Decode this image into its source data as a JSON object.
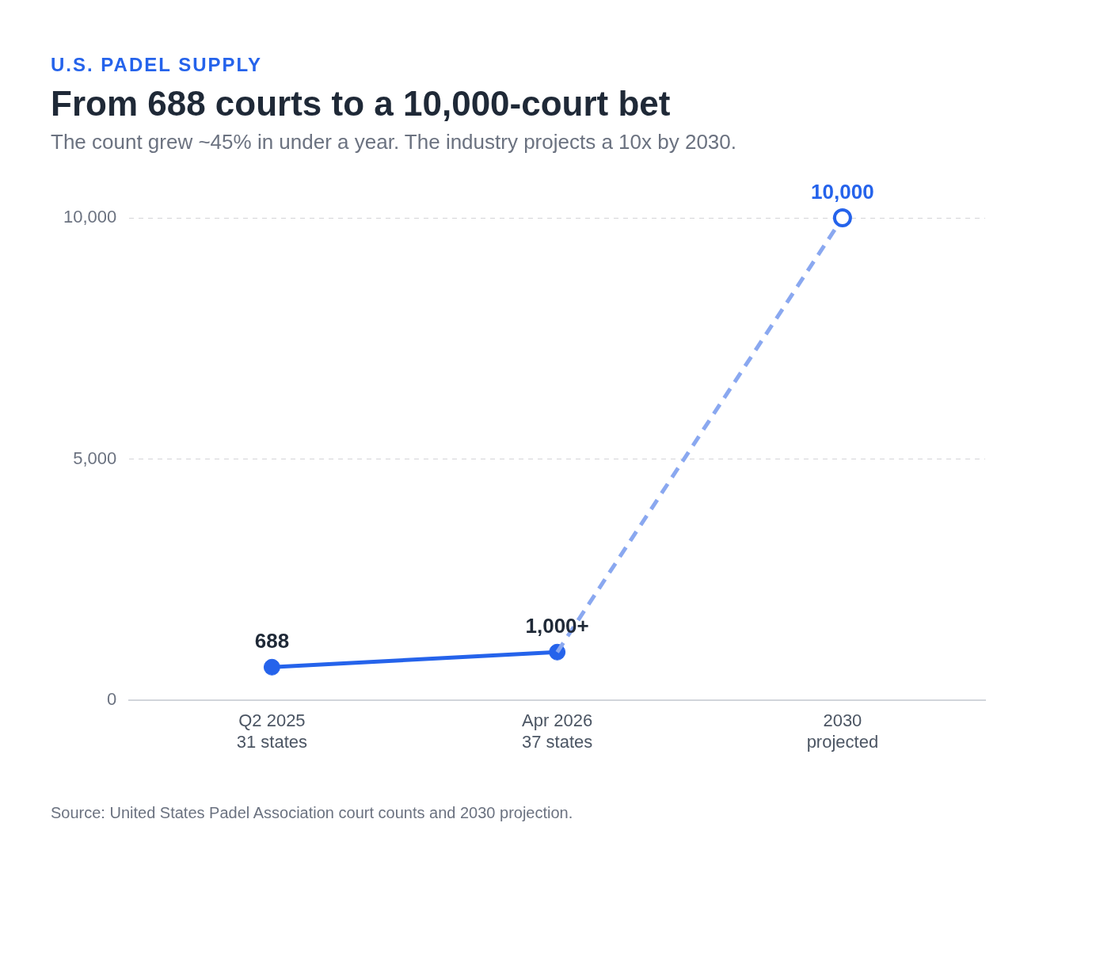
{
  "chart_data": {
    "type": "line",
    "title": "From 688 courts to a 10,000-court bet",
    "subtitle": "The count grew ~45% in under a year. The industry projects a 10x by 2030.",
    "annotations": [
      "U.S. PADEL SUPPLY",
      "Source: United States Padel Association court counts and 2030 projection."
    ],
    "categories": [
      "Q2 2025\n31 states",
      "Apr 2026\n37 states",
      "2030\nprojected"
    ],
    "series": [
      {
        "color": "#2563eb",
        "values": [
          688,
          1000,
          null
        ],
        "value_labels": [
          "688",
          "1,000+",
          null
        ],
        "line_style": "solid"
      },
      {
        "color": "#8aa8f0",
        "values": [
          null,
          1000,
          10000
        ],
        "value_labels": [
          null,
          null,
          "10,000"
        ],
        "line_style": "dashed"
      }
    ],
    "ylim": [
      0,
      10000
    ],
    "yticks": [
      0,
      {
        "value": 5000,
        "label": "5,000"
      },
      {
        "value": 10000,
        "label": "10,000"
      }
    ],
    "grid": "y",
    "marker": "circle"
  }
}
